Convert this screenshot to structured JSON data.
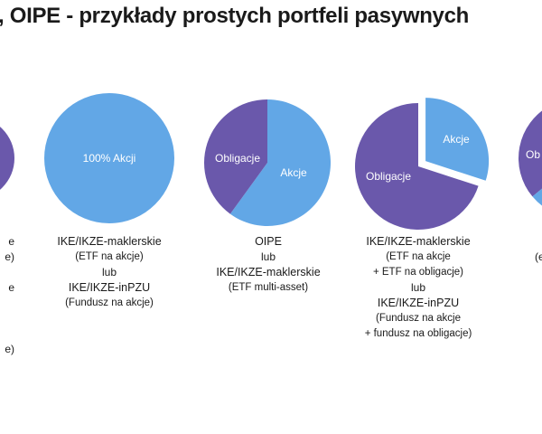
{
  "title": ", OIPE - przykłady prostych portfeli pasywnych",
  "colors": {
    "stocks": "#62a7e6",
    "bonds": "#6a58ab",
    "text": "#1a1a1a"
  },
  "portfolios": [
    {
      "id": "p0",
      "slices": [
        {
          "label": "",
          "share": 1.0,
          "color": "#6a58ab"
        }
      ],
      "caption": [
        "e",
        "e)",
        "e",
        "",
        "",
        "e)"
      ]
    },
    {
      "id": "p1",
      "slices": [
        {
          "label": "100% Akcji",
          "share": 1.0,
          "color": "#62a7e6"
        }
      ],
      "caption": [
        "IKE/IKZE-maklerskie",
        "(ETF na akcje)",
        "lub",
        "IKE/IKZE-inPZU",
        "(Fundusz na akcje)"
      ]
    },
    {
      "id": "p2",
      "slices": [
        {
          "label": "Akcje",
          "share": 0.6,
          "color": "#62a7e6"
        },
        {
          "label": "Obligacje",
          "share": 0.4,
          "color": "#6a58ab"
        }
      ],
      "caption": [
        "OIPE",
        "lub",
        "IKE/IKZE-maklerskie",
        "(ETF multi-asset)"
      ]
    },
    {
      "id": "p3",
      "slices": [
        {
          "label": "Akcje",
          "share": 0.3,
          "color": "#62a7e6",
          "exploded": true
        },
        {
          "label": "Obligacje",
          "share": 0.7,
          "color": "#6a58ab"
        }
      ],
      "caption": [
        "IKE/IKZE-maklerskie",
        "(ETF na akcje",
        "+ ETF na obligacje)",
        "lub",
        "IKE/IKZE-inPZU",
        "(Fundusz na akcje",
        "+ fundusz na obligacje)"
      ]
    },
    {
      "id": "p4",
      "slices": [
        {
          "label": "Ob",
          "share": 0.85,
          "color": "#6a58ab"
        },
        {
          "label": "",
          "share": 0.15,
          "color": "#62a7e6"
        }
      ],
      "caption": [
        "",
        "",
        "(e"
      ]
    }
  ]
}
